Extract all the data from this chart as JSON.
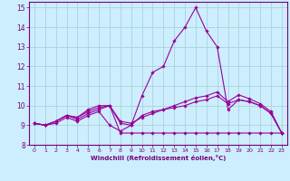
{
  "xlabel": "Windchill (Refroidissement éolien,°C)",
  "background_color": "#cceeff",
  "grid_color": "#aad4d4",
  "line_color": "#990099",
  "axis_color": "#770077",
  "xlim": [
    -0.5,
    23.5
  ],
  "ylim": [
    8,
    15.3
  ],
  "yticks": [
    8,
    9,
    10,
    11,
    12,
    13,
    14,
    15
  ],
  "xticks": [
    0,
    1,
    2,
    3,
    4,
    5,
    6,
    7,
    8,
    9,
    10,
    11,
    12,
    13,
    14,
    15,
    16,
    17,
    18,
    19,
    20,
    21,
    22,
    23
  ],
  "series": [
    [
      9.1,
      9.0,
      9.1,
      9.4,
      9.2,
      9.5,
      9.7,
      9.0,
      8.7,
      9.0,
      10.5,
      11.7,
      12.0,
      13.3,
      14.0,
      15.0,
      13.8,
      13.0,
      9.8,
      10.3,
      10.2,
      10.0,
      9.6,
      8.6
    ],
    [
      9.1,
      9.0,
      9.2,
      9.5,
      9.3,
      9.6,
      9.8,
      10.0,
      9.1,
      9.0,
      9.5,
      9.7,
      9.8,
      9.9,
      10.0,
      10.2,
      10.3,
      10.5,
      10.1,
      10.3,
      10.2,
      10.0,
      9.6,
      8.6
    ],
    [
      9.1,
      9.0,
      9.2,
      9.5,
      9.4,
      9.7,
      9.9,
      10.0,
      9.2,
      9.1,
      9.4,
      9.6,
      9.8,
      10.0,
      10.2,
      10.4,
      10.5,
      10.7,
      10.2,
      10.55,
      10.35,
      10.1,
      9.7,
      8.6
    ],
    [
      9.1,
      9.0,
      9.2,
      9.5,
      9.4,
      9.8,
      10.0,
      10.0,
      8.6,
      8.6,
      8.6,
      8.6,
      8.6,
      8.6,
      8.6,
      8.6,
      8.6,
      8.6,
      8.6,
      8.6,
      8.6,
      8.6,
      8.6,
      8.6
    ]
  ]
}
